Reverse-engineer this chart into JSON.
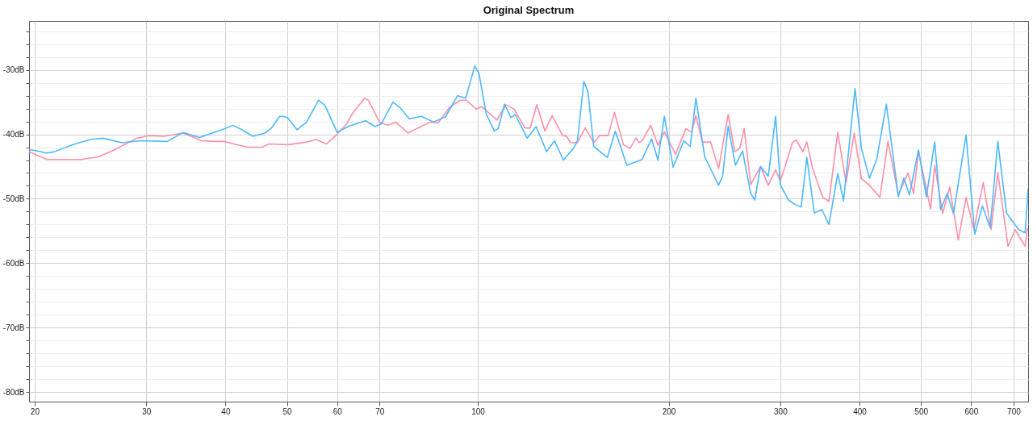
{
  "chart_data": {
    "type": "line",
    "title": "Original Spectrum",
    "log": "x",
    "grid": true,
    "line_style": "solid",
    "marker": "none",
    "xlim": [
      19.6,
      738
    ],
    "xticks": [
      20,
      30,
      40,
      50,
      60,
      70,
      100,
      200,
      300,
      400,
      500,
      600,
      700
    ],
    "ylim": [
      -81.5,
      -22.4
    ],
    "yticks": [
      {
        "value": -24,
        "label": null
      },
      {
        "value": -26,
        "label": null
      },
      {
        "value": -28,
        "label": null
      },
      {
        "value": -30,
        "label": "-30dB"
      },
      {
        "value": -32,
        "label": null
      },
      {
        "value": -34,
        "label": null
      },
      {
        "value": -36,
        "label": null
      },
      {
        "value": -38,
        "label": null
      },
      {
        "value": -40,
        "label": "-40dB"
      },
      {
        "value": -42,
        "label": null
      },
      {
        "value": -44,
        "label": null
      },
      {
        "value": -46,
        "label": null
      },
      {
        "value": -48,
        "label": null
      },
      {
        "value": -50,
        "label": "-50dB"
      },
      {
        "value": -52,
        "label": null
      },
      {
        "value": -54,
        "label": null
      },
      {
        "value": -56,
        "label": null
      },
      {
        "value": -58,
        "label": null
      },
      {
        "value": -60,
        "label": "-60dB"
      },
      {
        "value": -62,
        "label": null
      },
      {
        "value": -64,
        "label": null
      },
      {
        "value": -66,
        "label": null
      },
      {
        "value": -68,
        "label": null
      },
      {
        "value": -70,
        "label": "-70dB"
      },
      {
        "value": -72,
        "label": null
      },
      {
        "value": -74,
        "label": null
      },
      {
        "value": -76,
        "label": null
      },
      {
        "value": -78,
        "label": null
      },
      {
        "value": -80,
        "label": "-80dB"
      }
    ],
    "series": [
      {
        "color": "#ff8fa8",
        "x": [
          19.6,
          20.9,
          23.7,
          25.2,
          26.6,
          29.0,
          30.3,
          32.0,
          34.3,
          36.7,
          38.1,
          39.8,
          41.6,
          43.4,
          45.7,
          46.8,
          50.3,
          53.7,
          55.6,
          57.7,
          60.0,
          62.2,
          63.4,
          66.3,
          67.2,
          70.0,
          72.1,
          74.2,
          77.6,
          80.6,
          84.2,
          86.6,
          90.3,
          93.8,
          96.0,
          99.4,
          101.4,
          106.2,
          107.1,
          110.8,
          114.1,
          118.7,
          121.0,
          123.9,
          127.6,
          131.0,
          136.1,
          138.0,
          140.1,
          143.6,
          147.7,
          152.4,
          155.6,
          160.5,
          164.3,
          169.7,
          173.9,
          177.5,
          179.7,
          181.6,
          187.4,
          192.4,
          196.9,
          205.1,
          213.0,
          217.4,
          220.8,
          226.0,
          232.9,
          239.8,
          248.3,
          254.2,
          258.9,
          263.1,
          269.5,
          279.2,
          287.2,
          295.0,
          300.0,
          305.6,
          313.8,
          318.0,
          325.5,
          330.4,
          337.4,
          350.0,
          358.0,
          369.6,
          381.0,
          392.4,
          402.8,
          414.7,
          430.8,
          443.6,
          460.6,
          477.0,
          486.8,
          495.5,
          517.8,
          525.6,
          541.0,
          555.0,
          572.6,
          589.0,
          606.0,
          627.0,
          645.0,
          661.0,
          686.0,
          704.0,
          730.0,
          736.0
        ],
        "values": [
          -42.7,
          -43.9,
          -43.9,
          -43.5,
          -42.5,
          -40.6,
          -40.2,
          -40.3,
          -39.8,
          -41.0,
          -41.1,
          -41.1,
          -41.6,
          -42.0,
          -42.0,
          -41.5,
          -41.6,
          -41.2,
          -40.8,
          -41.5,
          -40.0,
          -38.3,
          -36.8,
          -34.4,
          -34.7,
          -38.1,
          -38.6,
          -38.1,
          -39.8,
          -39.0,
          -38.1,
          -38.2,
          -35.8,
          -34.7,
          -34.7,
          -36.1,
          -35.7,
          -37.4,
          -37.8,
          -35.4,
          -36.1,
          -39.0,
          -39.0,
          -35.4,
          -39.5,
          -37.1,
          -40.2,
          -40.3,
          -41.3,
          -41.3,
          -39.0,
          -41.3,
          -40.2,
          -40.2,
          -36.6,
          -41.6,
          -42.2,
          -40.6,
          -41.3,
          -41.0,
          -38.6,
          -41.7,
          -39.6,
          -43.1,
          -39.1,
          -39.7,
          -37.1,
          -41.2,
          -41.2,
          -45.3,
          -36.9,
          -42.7,
          -42.2,
          -39.1,
          -47.8,
          -45.0,
          -47.9,
          -45.5,
          -47.3,
          -44.8,
          -41.2,
          -40.9,
          -42.7,
          -41.2,
          -45.3,
          -49.8,
          -50.4,
          -39.7,
          -47.5,
          -39.8,
          -46.9,
          -47.9,
          -49.8,
          -41.1,
          -49.4,
          -46.0,
          -49.2,
          -42.6,
          -51.6,
          -44.8,
          -52.3,
          -48.2,
          -56.4,
          -49.8,
          -54.8,
          -47.5,
          -54.8,
          -45.9,
          -57.4,
          -54.8,
          -57.4,
          -54.5
        ]
      },
      {
        "color": "#4db8ff",
        "x": [
          19.6,
          20.0,
          20.9,
          21.5,
          23.0,
          23.7,
          24.5,
          25.6,
          27.5,
          29.3,
          32.4,
          34.3,
          36.4,
          38.1,
          39.7,
          41.1,
          42.5,
          44.2,
          46.2,
          47.3,
          48.7,
          49.2,
          50.1,
          51.9,
          53.7,
          56.1,
          57.4,
          60.0,
          62.7,
          66.5,
          68.9,
          70.4,
          73.5,
          75.3,
          78.0,
          81.5,
          85.1,
          88.9,
          92.9,
          95.7,
          98.9,
          100.4,
          103.1,
          106.2,
          107.7,
          110.2,
          112.8,
          114.5,
          119.7,
          123.6,
          128.4,
          132.1,
          136.5,
          141.5,
          143.6,
          147.0,
          149.2,
          152.4,
          160.1,
          164.8,
          171.8,
          181.6,
          188.0,
          192.4,
          196.9,
          203.3,
          211.3,
          216.3,
          220.8,
          228.0,
          239.8,
          243.3,
          248.3,
          254.9,
          261.6,
          269.5,
          273.5,
          279.2,
          287.2,
          295.0,
          300.0,
          309.0,
          316.5,
          323.6,
          330.4,
          339.4,
          349.0,
          358.0,
          369.6,
          377.5,
          393.5,
          402.8,
          414.7,
          425.8,
          441.0,
          460.6,
          469.8,
          479.6,
          495.5,
          510.0,
          525.6,
          537.0,
          550.0,
          562.7,
          589.0,
          608.0,
          625.0,
          643.0,
          661.0,
          682.0,
          713.0,
          730.0,
          738.0
        ],
        "values": [
          -42.4,
          -42.5,
          -42.9,
          -42.7,
          -41.6,
          -41.2,
          -40.8,
          -40.6,
          -41.3,
          -41.0,
          -41.1,
          -39.7,
          -40.5,
          -39.8,
          -39.2,
          -38.6,
          -39.3,
          -40.3,
          -39.8,
          -39.0,
          -37.2,
          -37.2,
          -37.4,
          -39.3,
          -38.1,
          -34.7,
          -35.5,
          -39.7,
          -38.7,
          -37.9,
          -38.8,
          -38.4,
          -35.0,
          -35.8,
          -37.6,
          -37.2,
          -38.1,
          -37.3,
          -34.0,
          -34.4,
          -29.4,
          -30.5,
          -36.8,
          -39.5,
          -39.1,
          -35.3,
          -37.4,
          -36.9,
          -40.6,
          -38.8,
          -42.7,
          -41.0,
          -44.0,
          -42.2,
          -41.0,
          -31.8,
          -33.4,
          -41.9,
          -43.6,
          -39.5,
          -44.8,
          -43.9,
          -40.7,
          -44.0,
          -37.2,
          -45.1,
          -41.0,
          -41.9,
          -34.4,
          -43.5,
          -47.9,
          -46.5,
          -38.7,
          -44.8,
          -42.6,
          -49.2,
          -50.2,
          -45.0,
          -46.5,
          -37.2,
          -47.8,
          -50.2,
          -50.9,
          -51.3,
          -43.6,
          -52.2,
          -51.7,
          -54.0,
          -46.1,
          -50.3,
          -32.9,
          -42.2,
          -46.8,
          -43.9,
          -35.3,
          -49.7,
          -46.8,
          -49.4,
          -42.4,
          -49.7,
          -41.2,
          -51.7,
          -49.2,
          -52.3,
          -40.1,
          -55.5,
          -51.1,
          -54.5,
          -41.1,
          -52.2,
          -54.8,
          -55.3,
          -48.4
        ]
      }
    ]
  }
}
